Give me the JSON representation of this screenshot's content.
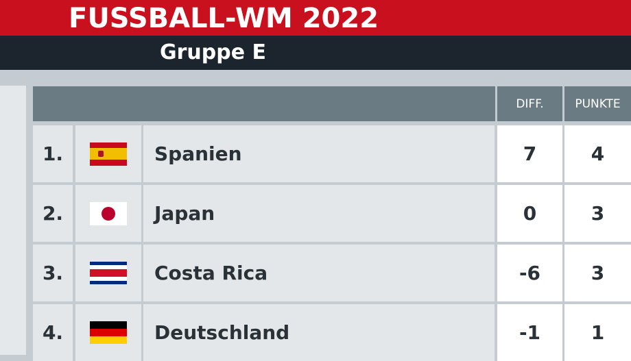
{
  "header": {
    "title": "FUSSBALL-WM 2022",
    "subtitle": "Gruppe E"
  },
  "table": {
    "columns": {
      "diff": "DIFF.",
      "points": "PUNKTE"
    },
    "rows": [
      {
        "rank": "1.",
        "flag": "spain-flag",
        "team": "Spanien",
        "diff": "7",
        "points": "4"
      },
      {
        "rank": "2.",
        "flag": "japan-flag",
        "team": "Japan",
        "diff": "0",
        "points": "3"
      },
      {
        "rank": "3.",
        "flag": "costa-rica-flag",
        "team": "Costa Rica",
        "diff": "-6",
        "points": "3"
      },
      {
        "rank": "4.",
        "flag": "germany-flag",
        "team": "Deutschland",
        "diff": "-1",
        "points": "1"
      }
    ]
  },
  "colors": {
    "brand_red": "#c8101e",
    "dark": "#1c252d",
    "header_gray": "#6b7b83"
  }
}
